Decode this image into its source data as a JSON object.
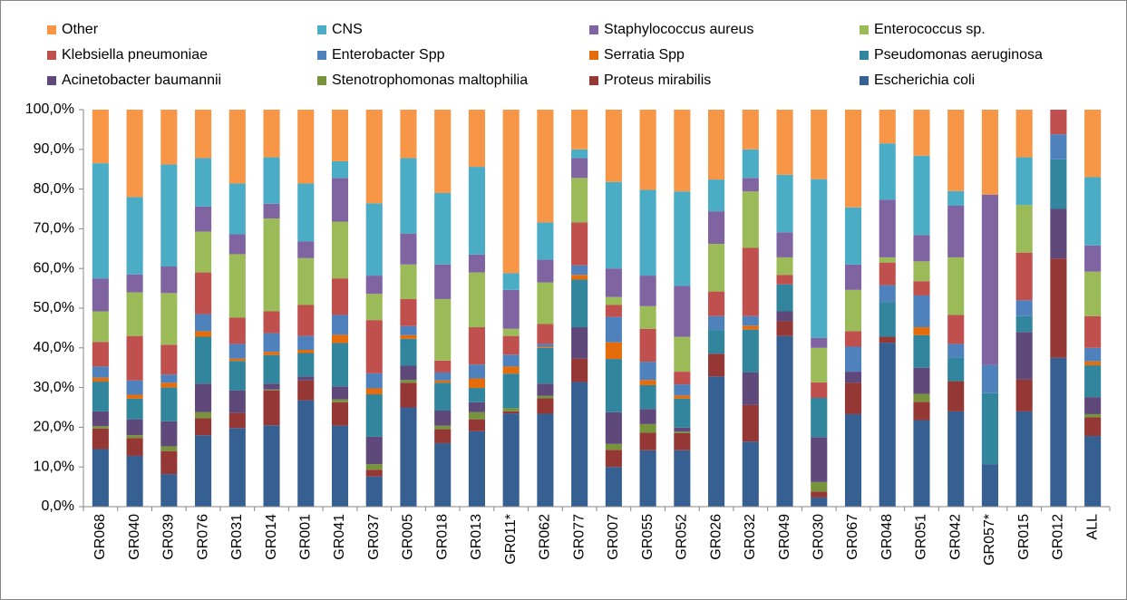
{
  "chart_data": {
    "type": "stacked_bar",
    "categories": [
      "GR068",
      "GR040",
      "GR039",
      "GR076",
      "GR031",
      "GR014",
      "GR001",
      "GR041",
      "GR037",
      "GR005",
      "GR018",
      "GR013",
      "GR011*",
      "GR062",
      "GR077",
      "GR007",
      "GR055",
      "GR052",
      "GR026",
      "GR032",
      "GR049",
      "GR030",
      "GR067",
      "GR048",
      "GR051",
      "GR042",
      "GR057*",
      "GR015",
      "GR012",
      "ALL"
    ],
    "series": [
      {
        "name": "Other",
        "color": "#f79646",
        "values": [
          13.5,
          22.0,
          13.8,
          12.2,
          18.6,
          12.0,
          18.6,
          13.0,
          23.6,
          12.2,
          21.0,
          14.4,
          41.2,
          28.4,
          10.0,
          18.2,
          20.2,
          20.6,
          17.6,
          10.0,
          16.4,
          17.5,
          24.6,
          8.5,
          11.6,
          20.5,
          21.4,
          12,
          0,
          17.0
        ]
      },
      {
        "name": "CNS",
        "color": "#4bacc6",
        "values": [
          29.0,
          19.5,
          25.7,
          12.2,
          12.8,
          11.7,
          14.6,
          4.2,
          18.2,
          19.0,
          18.0,
          22.1,
          4.2,
          9.4,
          2.2,
          21.8,
          21.6,
          23.8,
          8.0,
          7.2,
          14.5,
          40.0,
          14.4,
          14.2,
          20.0,
          3.7,
          0,
          12,
          0,
          17.2
        ]
      },
      {
        "name": "Staphylococcus aureus",
        "color": "#8064a2",
        "values": [
          8.3,
          4.5,
          6.7,
          6.3,
          5.0,
          3.7,
          4.2,
          11.0,
          4.6,
          7.8,
          8.7,
          4.5,
          9.8,
          5.7,
          5.0,
          7.2,
          7.7,
          12.8,
          8.2,
          3.4,
          6.3,
          2.5,
          6.4,
          14.5,
          6.6,
          13.0,
          42.9,
          0,
          0,
          6.6
        ]
      },
      {
        "name": "Enterococcus sp.",
        "color": "#9bbb59",
        "values": [
          7.7,
          11.0,
          13.0,
          10.3,
          16.0,
          23.4,
          11.8,
          14.3,
          6.6,
          8.7,
          15.5,
          13.8,
          1.8,
          10.5,
          11.2,
          2.0,
          5.7,
          8.8,
          12.0,
          14.2,
          4.4,
          8.7,
          10.4,
          1.3,
          5.0,
          14.5,
          0,
          12,
          0,
          11.2
        ]
      },
      {
        "name": "Klebsiella pneumoniae",
        "color": "#c0504d",
        "values": [
          6.2,
          11.2,
          7.5,
          10.5,
          6.6,
          5.5,
          7.8,
          9.2,
          13.4,
          6.8,
          3.0,
          9.4,
          4.7,
          5.0,
          10.8,
          3.0,
          8.3,
          3.2,
          6.2,
          17.2,
          2.4,
          3.9,
          3.9,
          5.7,
          3.6,
          7.3,
          0,
          12,
          6.2,
          8.0
        ]
      },
      {
        "name": "Enterobacter Spp",
        "color": "#4f81bd",
        "values": [
          2.8,
          3.6,
          2.1,
          4.3,
          3.7,
          4.7,
          3.5,
          5.0,
          3.8,
          2.3,
          2.0,
          3.5,
          3.0,
          0.7,
          2.4,
          6.4,
          4.6,
          2.8,
          3.5,
          2.4,
          0,
          0,
          6.3,
          4.3,
          8.0,
          3.4,
          7.1,
          4,
          6.3,
          3.4
        ]
      },
      {
        "name": "Serratia Spp",
        "color": "#e46c0a",
        "values": [
          1.0,
          1.0,
          1.2,
          1.4,
          0.6,
          0.8,
          0.8,
          2.1,
          1.5,
          0.9,
          0.6,
          2.4,
          1.8,
          0.3,
          1.2,
          4.2,
          1.3,
          0.8,
          0,
          1.0,
          0,
          0,
          0,
          0,
          2.0,
          0,
          0,
          0,
          0,
          1.0
        ]
      },
      {
        "name": "Pseudomonas aeruginosa",
        "color": "#31859c",
        "values": [
          7.5,
          5.2,
          8.5,
          11.8,
          7.4,
          7.2,
          5.9,
          10.9,
          10.7,
          6.8,
          7.0,
          3.6,
          8.7,
          9.0,
          12.0,
          13.4,
          6.0,
          7.3,
          6.0,
          10.8,
          6.8,
          9.9,
          0,
          8.7,
          8.2,
          6.0,
          17.9,
          4,
          12.5,
          8.0
        ]
      },
      {
        "name": "Acinetobacter baumannii",
        "color": "#5f497a",
        "values": [
          3.7,
          4.0,
          6.3,
          7.2,
          5.7,
          1.5,
          1.0,
          3.3,
          6.9,
          3.6,
          3.8,
          2.5,
          0,
          3.1,
          7.9,
          8.0,
          3.8,
          1.0,
          0,
          8.2,
          2.5,
          11.3,
          2.8,
          0,
          6.6,
          0,
          0,
          12,
          12.5,
          4.3
        ]
      },
      {
        "name": "Stenotrophomonas maltophilia",
        "color": "#77933c",
        "values": [
          0.6,
          0.7,
          1.2,
          1.5,
          0,
          0.2,
          0,
          0.7,
          1.4,
          0.7,
          0.9,
          1.8,
          0.8,
          0.6,
          0,
          1.5,
          2.2,
          0.4,
          0,
          0,
          0,
          2.4,
          0,
          0,
          2.0,
          0,
          0,
          0,
          0,
          0.8
        ]
      },
      {
        "name": "Proteus mirabilis",
        "color": "#953735",
        "values": [
          5.2,
          4.5,
          5.8,
          4.3,
          3.8,
          8.8,
          5.0,
          5.9,
          1.7,
          6.2,
          3.5,
          3.0,
          0.5,
          3.9,
          5.9,
          4.3,
          4.4,
          4.3,
          5.7,
          9.2,
          3.7,
          1.5,
          7.9,
          1.5,
          4.6,
          7.6,
          0,
          8,
          25,
          4.7
        ]
      },
      {
        "name": "Escherichia coli",
        "color": "#376092",
        "values": [
          14.5,
          12.8,
          8.2,
          18,
          19.8,
          20.5,
          26.8,
          20.4,
          7.6,
          25,
          16,
          19,
          23.5,
          23.4,
          31.4,
          10,
          14.2,
          14.2,
          32.8,
          16.4,
          43,
          2.3,
          23.3,
          41.3,
          21.8,
          24,
          10.7,
          24,
          37.5,
          17.8
        ]
      }
    ],
    "ylim": [
      0,
      100
    ],
    "yticks": [
      {
        "value": 0,
        "label": "0,0%"
      },
      {
        "value": 10,
        "label": "10,0%"
      },
      {
        "value": 20,
        "label": "20,0%"
      },
      {
        "value": 30,
        "label": "30,0%"
      },
      {
        "value": 40,
        "label": "40,0%"
      },
      {
        "value": 50,
        "label": "50,0%"
      },
      {
        "value": 60,
        "label": "60,0%"
      },
      {
        "value": 70,
        "label": "70,0%"
      },
      {
        "value": 80,
        "label": "80,0%"
      },
      {
        "value": 90,
        "label": "90,0%"
      },
      {
        "value": 100,
        "label": "100,0%"
      }
    ],
    "grid": false,
    "legend": "top"
  }
}
